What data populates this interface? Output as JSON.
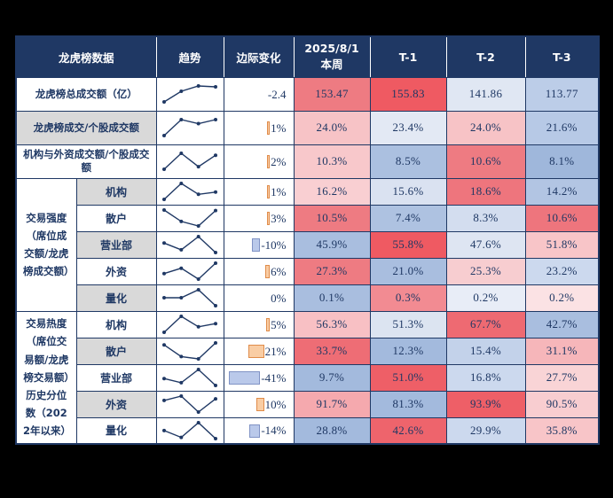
{
  "colors": {
    "page_bg": "#000000",
    "header_bg": "#1f3864",
    "border": "#1f3864",
    "text": "#1f3864",
    "label_gray": "#d9d9d9",
    "bar_positive_fill": "#f9cda4",
    "bar_positive_border": "#e08c4a",
    "bar_negative_fill": "#bac9ea",
    "bar_negative_border": "#8093c5",
    "spark": "#1f3864"
  },
  "header": {
    "label": "龙虎榜数据",
    "trend": "趋势",
    "marginal": "边际变化",
    "week_line1": "2025/8/1",
    "week_line2": "本周",
    "t1": "T-1",
    "t2": "T-2",
    "t3": "T-3"
  },
  "chart_data": {
    "type": "table",
    "title": "龙虎榜数据",
    "columns": [
      "龙虎榜数据",
      "趋势",
      "边际变化",
      "2025/8/1 本周",
      "T-1",
      "T-2",
      "T-3"
    ],
    "sections": [
      {
        "group_label": null,
        "rows": [
          {
            "label": "龙虎榜总成交额（亿）",
            "gray": false,
            "marginal": {
              "text": "-2.4",
              "value": -2.4,
              "bar": false
            },
            "values": [
              153.47,
              155.83,
              141.86,
              113.77
            ],
            "display": [
              "153.47",
              "155.83",
              "141.86",
              "113.77"
            ],
            "cell_bg": [
              "#ee7b82",
              "#ef5a62",
              "#e0e7f3",
              "#bccde8"
            ]
          },
          {
            "label": "龙虎榜成交/个股成交额",
            "gray": true,
            "marginal": {
              "text": "1%",
              "value": 1,
              "bar": true
            },
            "values": [
              24.0,
              23.4,
              24.0,
              21.6
            ],
            "display": [
              "24.0%",
              "23.4%",
              "24.0%",
              "21.6%"
            ],
            "cell_bg": [
              "#f7c3c6",
              "#e3e9f4",
              "#f7c3c6",
              "#b7c9e6"
            ]
          },
          {
            "label": "机构与外资成交额/个股成交额",
            "gray": false,
            "marginal": {
              "text": "2%",
              "value": 2,
              "bar": true
            },
            "values": [
              10.3,
              8.5,
              10.6,
              8.1
            ],
            "display": [
              "10.3%",
              "8.5%",
              "10.6%",
              "8.1%"
            ],
            "cell_bg": [
              "#f8c8cb",
              "#abc0e0",
              "#ee7b82",
              "#9fb7db"
            ]
          }
        ]
      },
      {
        "group_label": "交易强度（席位成交额/龙虎榜成交额）",
        "rows": [
          {
            "label": "机构",
            "gray": true,
            "marginal": {
              "text": "1%",
              "value": 1,
              "bar": true
            },
            "values": [
              16.2,
              15.6,
              18.6,
              14.2
            ],
            "display": [
              "16.2%",
              "15.6%",
              "18.6%",
              "14.2%"
            ],
            "cell_bg": [
              "#f9cfd2",
              "#dae2f1",
              "#ee757d",
              "#b2c5e3"
            ]
          },
          {
            "label": "散户",
            "gray": false,
            "marginal": {
              "text": "3%",
              "value": 3,
              "bar": true
            },
            "values": [
              10.5,
              7.4,
              8.3,
              10.6
            ],
            "display": [
              "10.5%",
              "7.4%",
              "8.3%",
              "10.6%"
            ],
            "cell_bg": [
              "#ee7b82",
              "#aec2e1",
              "#d3ddef",
              "#ee757d"
            ]
          },
          {
            "label": "营业部",
            "gray": true,
            "marginal": {
              "text": "-10%",
              "value": -10,
              "bar": true
            },
            "values": [
              45.9,
              55.8,
              47.6,
              51.8
            ],
            "display": [
              "45.9%",
              "55.8%",
              "47.6%",
              "51.8%"
            ],
            "cell_bg": [
              "#a9bedf",
              "#ef5a62",
              "#dee5f2",
              "#f8c5c8"
            ]
          },
          {
            "label": "外资",
            "gray": false,
            "marginal": {
              "text": "6%",
              "value": 6,
              "bar": true
            },
            "values": [
              27.3,
              21.0,
              25.3,
              23.2
            ],
            "display": [
              "27.3%",
              "21.0%",
              "25.3%",
              "23.2%"
            ],
            "cell_bg": [
              "#ee7b82",
              "#a9bedf",
              "#f7cdd0",
              "#ccd9ee"
            ]
          },
          {
            "label": "量化",
            "gray": true,
            "marginal": {
              "text": "0%",
              "value": 0,
              "bar": false
            },
            "values": [
              0.1,
              0.3,
              0.2,
              0.2
            ],
            "display": [
              "0.1%",
              "0.3%",
              "0.2%",
              "0.2%"
            ],
            "cell_bg": [
              "#a9bedf",
              "#f28b92",
              "#e8edf7",
              "#fbe2e4"
            ]
          }
        ]
      },
      {
        "group_label": "交易热度（席位交易额/龙虎榜交易额）历史分位数（2022年以来）",
        "rows": [
          {
            "label": "机构",
            "gray": false,
            "marginal": {
              "text": "5%",
              "value": 5,
              "bar": true
            },
            "values": [
              56.3,
              51.3,
              67.7,
              42.7
            ],
            "display": [
              "56.3%",
              "51.3%",
              "67.7%",
              "42.7%"
            ],
            "cell_bg": [
              "#f8c0c4",
              "#dce4f1",
              "#ee6a72",
              "#a9bedf"
            ]
          },
          {
            "label": "散户",
            "gray": true,
            "marginal": {
              "text": "21%",
              "value": 21,
              "bar": true
            },
            "values": [
              33.7,
              12.3,
              15.4,
              31.1
            ],
            "display": [
              "33.7%",
              "12.3%",
              "15.4%",
              "31.1%"
            ],
            "cell_bg": [
              "#ee6d75",
              "#a3badd",
              "#c3d2ea",
              "#f6b6ba"
            ]
          },
          {
            "label": "营业部",
            "gray": false,
            "marginal": {
              "text": "-41%",
              "value": -41,
              "bar": true
            },
            "values": [
              9.7,
              51.0,
              16.8,
              27.7
            ],
            "display": [
              "9.7%",
              "51.0%",
              "16.8%",
              "27.7%"
            ],
            "cell_bg": [
              "#a3badd",
              "#ee5f67",
              "#ccd9ee",
              "#f9d4d6"
            ]
          },
          {
            "label": "外资",
            "gray": true,
            "marginal": {
              "text": "10%",
              "value": 10,
              "bar": true
            },
            "values": [
              91.7,
              81.3,
              93.9,
              90.5
            ],
            "display": [
              "91.7%",
              "81.3%",
              "93.9%",
              "90.5%"
            ],
            "cell_bg": [
              "#f5a9ae",
              "#a3badd",
              "#ee5f67",
              "#f8cdd0"
            ]
          },
          {
            "label": "量化",
            "gray": false,
            "marginal": {
              "text": "-14%",
              "value": -14,
              "bar": true
            },
            "values": [
              28.8,
              42.6,
              29.9,
              35.8
            ],
            "display": [
              "28.8%",
              "42.6%",
              "29.9%",
              "35.8%"
            ],
            "cell_bg": [
              "#a3badd",
              "#ee646c",
              "#ccd9ee",
              "#f8c5c8"
            ]
          }
        ]
      }
    ]
  }
}
